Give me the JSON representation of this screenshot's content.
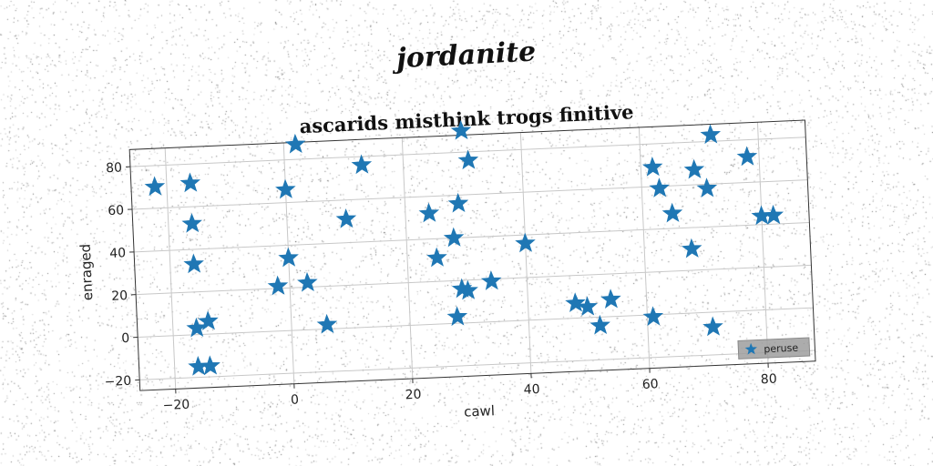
{
  "supertitle": "jordanite",
  "chart_data": {
    "type": "scatter",
    "title": "ascarids misthink trogs finitive",
    "xlabel": "cawl",
    "ylabel": "enraged",
    "xlim": [
      -26,
      88
    ],
    "ylim": [
      -25,
      88
    ],
    "xticks": [
      -20,
      0,
      20,
      40,
      60,
      80
    ],
    "yticks": [
      -20,
      0,
      20,
      40,
      60,
      80
    ],
    "grid": true,
    "legend_position": "lower-right",
    "marker": "star",
    "series": [
      {
        "name": "peruse",
        "color": "#1f77b4",
        "x": [
          -22,
          -16,
          -16,
          -16,
          -16,
          -16,
          -14,
          -14,
          -2,
          0,
          0,
          2,
          3,
          6,
          10,
          13,
          24,
          25,
          28,
          28,
          29,
          29,
          30,
          30,
          31,
          34,
          40,
          48,
          50,
          52,
          54,
          61,
          62,
          63,
          65,
          68,
          69,
          71,
          71,
          72,
          78,
          80,
          82
        ],
        "y": [
          70,
          71,
          52,
          33,
          3,
          -15,
          -15,
          6,
          21,
          34,
          66,
          87,
          22,
          2,
          51,
          76,
          52,
          31,
          3,
          40,
          16,
          56,
          15,
          90,
          76,
          19,
          36,
          7,
          5,
          -4,
          8,
          -1,
          69,
          59,
          47,
          30,
          67,
          -7,
          58,
          83,
          72,
          44,
          44
        ]
      }
    ]
  }
}
